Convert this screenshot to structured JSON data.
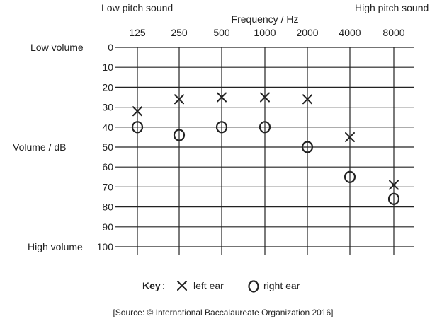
{
  "header": {
    "low_pitch": "Low pitch sound",
    "high_pitch": "High pitch sound"
  },
  "side": {
    "low_volume": "Low volume",
    "high_volume": "High volume"
  },
  "key": {
    "label": "Key",
    "colon": ":",
    "left_ear": "left ear",
    "right_ear": "right ear"
  },
  "source": "[Source: © International Baccalaureate Organization 2016]",
  "colors": {
    "ink": "#222222",
    "grid": "#222222"
  },
  "chart_data": {
    "type": "scatter",
    "xlabel": "Frequency / Hz",
    "ylabel": "Volume / dB",
    "categories": [
      "125",
      "250",
      "500",
      "1000",
      "2000",
      "4000",
      "8000"
    ],
    "y_ticks": [
      "0",
      "10",
      "20",
      "30",
      "40",
      "50",
      "60",
      "70",
      "80",
      "90",
      "100"
    ],
    "ylim": [
      0,
      100
    ],
    "y_inverted": true,
    "grid": true,
    "series": [
      {
        "name": "left ear",
        "marker": "x",
        "values": [
          32,
          26,
          25,
          25,
          26,
          45,
          69
        ]
      },
      {
        "name": "right ear",
        "marker": "o",
        "values": [
          40,
          44,
          40,
          40,
          50,
          65,
          76
        ]
      }
    ]
  }
}
